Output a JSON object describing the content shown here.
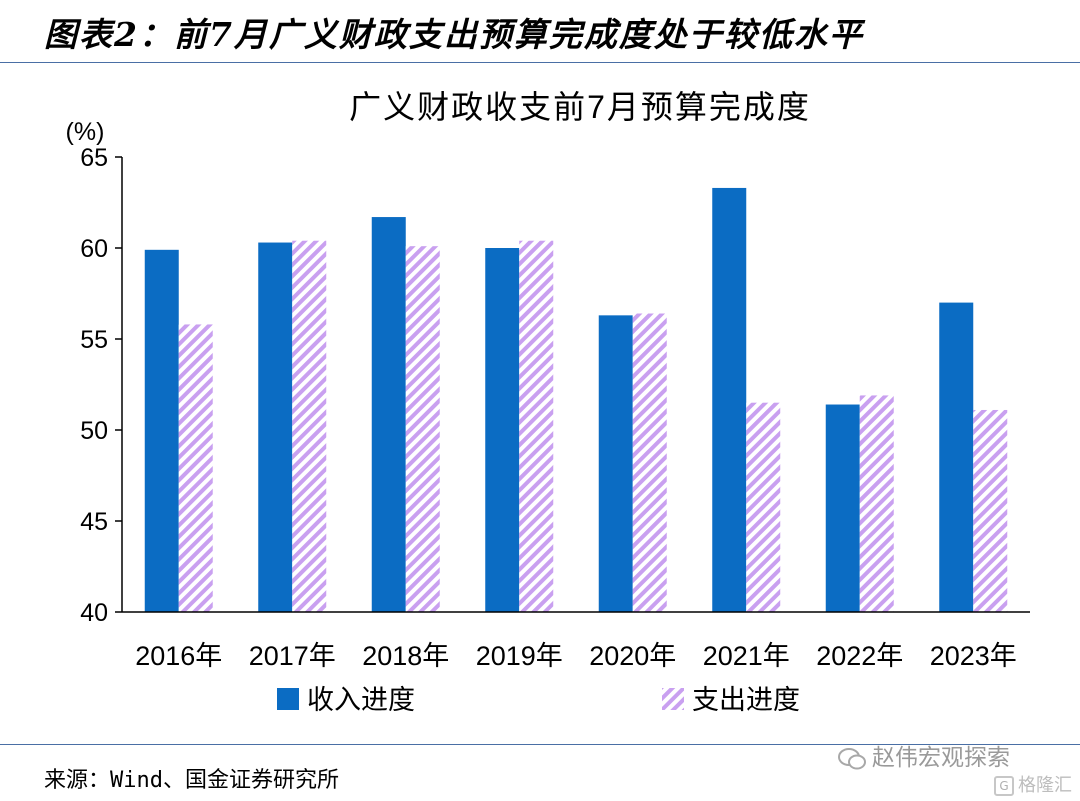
{
  "figure_title": "图表2：前7月广义财政支出预算完成度处于较低水平",
  "source": "来源：Wind、国金证券研究所",
  "watermark": "赵伟宏观探索",
  "logo_text": "格隆汇",
  "colors": {
    "income": "#0b6cc3",
    "expense_stripe": "#c9a0f0",
    "rule": "#4a6fa5"
  },
  "chart_data": {
    "type": "bar",
    "title": "广义财政收支前7月预算完成度",
    "ylabel": "(%)",
    "xlabel": "",
    "ylim": [
      40,
      65
    ],
    "yticks": [
      40,
      45,
      50,
      55,
      60,
      65
    ],
    "categories": [
      "2016年",
      "2017年",
      "2018年",
      "2019年",
      "2020年",
      "2021年",
      "2022年",
      "2023年"
    ],
    "series": [
      {
        "name": "收入进度",
        "values": [
          59.9,
          60.3,
          61.7,
          60.0,
          56.3,
          63.3,
          51.4,
          57.0
        ]
      },
      {
        "name": "支出进度",
        "values": [
          55.8,
          60.4,
          60.1,
          60.4,
          56.4,
          51.5,
          51.9,
          51.1
        ]
      }
    ],
    "legend_position": "bottom",
    "grid": false
  }
}
